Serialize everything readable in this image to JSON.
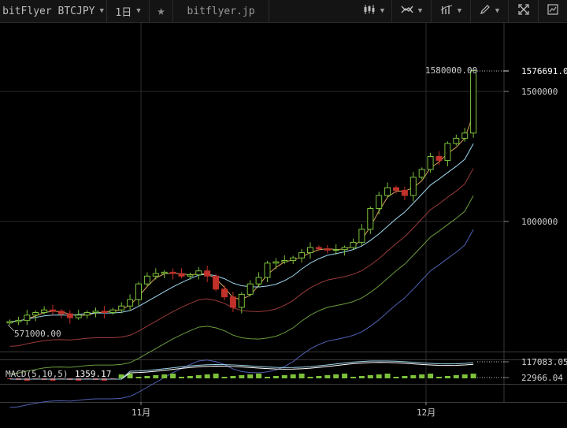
{
  "toolbar": {
    "symbol": "bitFlyer BTCJPY",
    "interval": "1日",
    "site": "bitflyer.jp",
    "icons": [
      "star-icon",
      "candle-type-icon",
      "indicator-icon",
      "compare-icon",
      "draw-icon",
      "fullscreen-icon",
      "snapshot-icon"
    ]
  },
  "axis": {
    "price_ticks": [
      "1500000",
      "1000000"
    ],
    "time_ticks": [
      "11月",
      "12月"
    ]
  },
  "labels": {
    "high_marker": "1580000.00",
    "low_marker": "571000.00",
    "last_price": "1576691.0",
    "macd_label": "MACD(5,10,5)",
    "macd_value": "1359.17",
    "macd_tick_top": "117083.05",
    "macd_tick_bottom": "22966.04"
  },
  "colors": {
    "background": "#000000",
    "candle_up": "#7cc13a",
    "candle_down": "#c0312a",
    "ma_fast": "#d8a35a",
    "ma_mid": "#9fd7ee",
    "ma_slow": "#9a3b3b",
    "ma_long": "#6b9b3e",
    "ma_longest": "#5060b0"
  }
}
